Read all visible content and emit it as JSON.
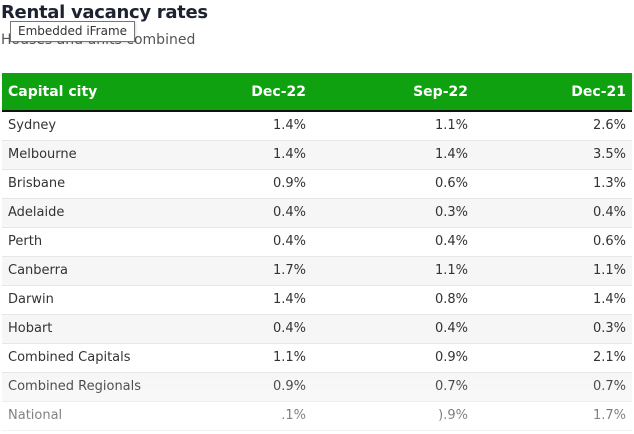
{
  "header": {
    "title": "Rental vacancy rates",
    "subtitle": "Houses and units combined",
    "tooltip": "Embedded iFrame"
  },
  "table": {
    "columns": [
      "Capital city",
      "Dec-22",
      "Sep-22",
      "Dec-21"
    ],
    "rows": [
      {
        "city": "Sydney",
        "dec22": "1.4%",
        "sep22": "1.1%",
        "dec21": "2.6%"
      },
      {
        "city": "Melbourne",
        "dec22": "1.4%",
        "sep22": "1.4%",
        "dec21": "3.5%"
      },
      {
        "city": "Brisbane",
        "dec22": "0.9%",
        "sep22": "0.6%",
        "dec21": "1.3%"
      },
      {
        "city": "Adelaide",
        "dec22": "0.4%",
        "sep22": "0.3%",
        "dec21": "0.4%"
      },
      {
        "city": "Perth",
        "dec22": "0.4%",
        "sep22": "0.4%",
        "dec21": "0.6%"
      },
      {
        "city": "Canberra",
        "dec22": "1.7%",
        "sep22": "1.1%",
        "dec21": "1.1%"
      },
      {
        "city": "Darwin",
        "dec22": "1.4%",
        "sep22": "0.8%",
        "dec21": "1.4%"
      },
      {
        "city": "Hobart",
        "dec22": "0.4%",
        "sep22": "0.4%",
        "dec21": "0.3%"
      },
      {
        "city": "Combined Capitals",
        "dec22": "1.1%",
        "sep22": "0.9%",
        "dec21": "2.1%"
      },
      {
        "city": "Combined Regionals",
        "dec22": "0.9%",
        "sep22": "0.7%",
        "dec21": "0.7%"
      },
      {
        "city": "National",
        "dec22": ".1%",
        "sep22": ").9%",
        "dec21": "1.7%"
      }
    ]
  },
  "colors": {
    "header_bg": "#0fa10f",
    "header_text": "#ffffff",
    "title": "#1c2230"
  }
}
